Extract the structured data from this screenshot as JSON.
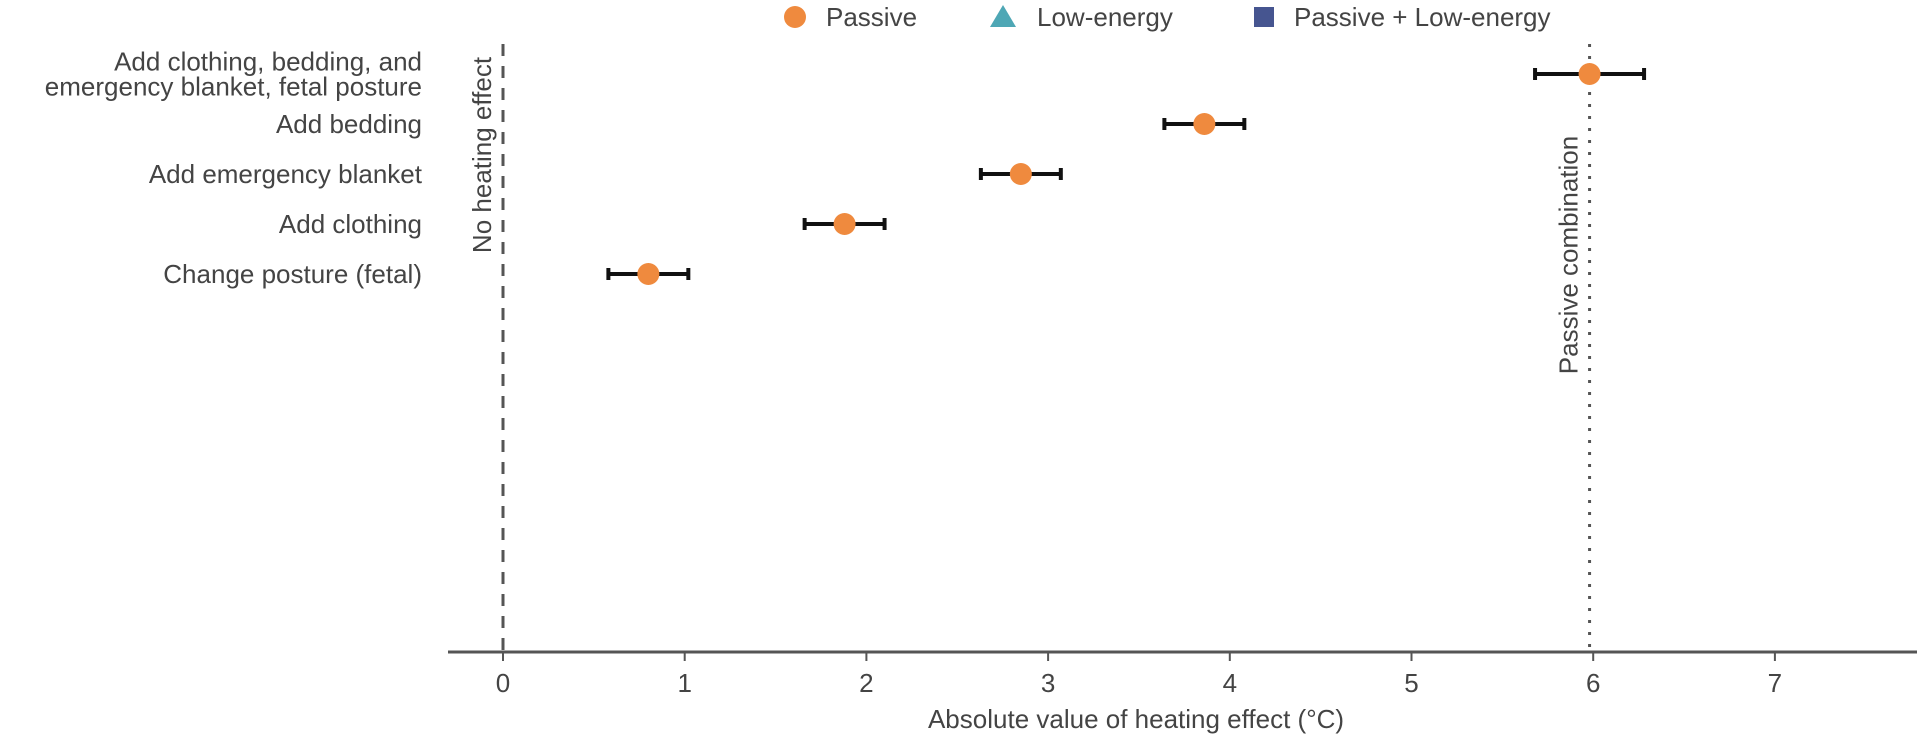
{
  "chart_data": {
    "type": "scatter",
    "title": "",
    "xlabel": "Absolute value of heating effect (°C)",
    "ylabel": "",
    "xlim": [
      -0.3,
      7.8
    ],
    "xticks": [
      "0",
      "1",
      "2",
      "3",
      "4",
      "5",
      "6",
      "7"
    ],
    "grid": false,
    "legend_position": "top",
    "legend": [
      {
        "name": "Passive",
        "marker": "circle",
        "color": "#ef8a3e"
      },
      {
        "name": "Low-energy",
        "marker": "triangle",
        "color": "#4ea7b5"
      },
      {
        "name": "Passive + Low-energy",
        "marker": "square",
        "color": "#465590"
      }
    ],
    "categories": [
      [
        "Add clothing, bedding, and",
        "emergency blanket, fetal posture"
      ],
      [
        "Add bedding"
      ],
      [
        "Add emergency blanket"
      ],
      [
        "Add clothing"
      ],
      [
        "Change posture (fetal)"
      ]
    ],
    "series": [
      {
        "name": "Passive",
        "points": [
          {
            "x": 5.98,
            "lo": 5.68,
            "hi": 6.28
          },
          {
            "x": 3.86,
            "lo": 3.64,
            "hi": 4.08
          },
          {
            "x": 2.85,
            "lo": 2.63,
            "hi": 3.07
          },
          {
            "x": 1.88,
            "lo": 1.66,
            "hi": 2.1
          },
          {
            "x": 0.8,
            "lo": 0.58,
            "hi": 1.02
          }
        ]
      }
    ],
    "reference_lines": [
      {
        "x": 0,
        "style": "dashed",
        "label": "No heating effect"
      },
      {
        "x": 5.98,
        "style": "dotted",
        "label": "Passive combination"
      }
    ]
  }
}
